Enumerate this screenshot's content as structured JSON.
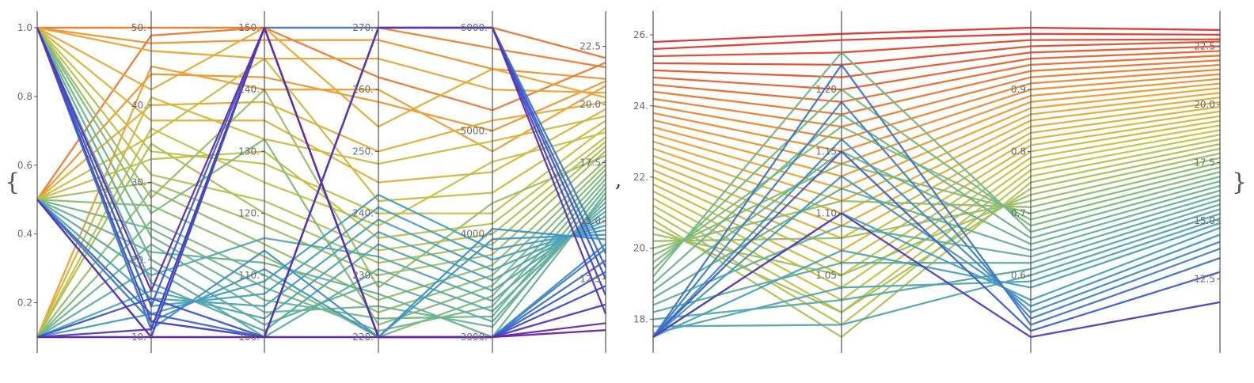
{
  "wrapper": {
    "open": "{",
    "separator": ",",
    "close": "}"
  },
  "chart_data": [
    {
      "type": "parallel_coordinates",
      "title": "",
      "axes": [
        {
          "name": "",
          "min": 0.1,
          "max": 1.0,
          "ticks": [
            {
              "v": 1.0,
              "t": "1.0"
            },
            {
              "v": 0.8,
              "t": "0.8"
            },
            {
              "v": 0.6,
              "t": "0.6"
            },
            {
              "v": 0.4,
              "t": "0.4"
            },
            {
              "v": 0.2,
              "t": "0.2"
            }
          ]
        },
        {
          "name": "",
          "min": 10,
          "max": 50,
          "ticks": [
            {
              "v": 50,
              "t": "50."
            },
            {
              "v": 40,
              "t": "40."
            },
            {
              "v": 30,
              "t": "30."
            },
            {
              "v": 20,
              "t": "20."
            },
            {
              "v": 10,
              "t": "10."
            }
          ]
        },
        {
          "name": "",
          "min": 100,
          "max": 150,
          "ticks": [
            {
              "v": 150,
              "t": "150."
            },
            {
              "v": 140,
              "t": "140."
            },
            {
              "v": 130,
              "t": "130."
            },
            {
              "v": 120,
              "t": "120."
            },
            {
              "v": 110,
              "t": "110."
            },
            {
              "v": 100,
              "t": "100."
            }
          ]
        },
        {
          "name": "",
          "min": 220,
          "max": 270,
          "ticks": [
            {
              "v": 270,
              "t": "270."
            },
            {
              "v": 260,
              "t": "260."
            },
            {
              "v": 250,
              "t": "250."
            },
            {
              "v": 240,
              "t": "240."
            },
            {
              "v": 230,
              "t": "230."
            },
            {
              "v": 220,
              "t": "220."
            }
          ]
        },
        {
          "name": "",
          "min": 3000,
          "max": 6000,
          "ticks": [
            {
              "v": 6000,
              "t": "6000."
            },
            {
              "v": 5000,
              "t": "5000."
            },
            {
              "v": 4000,
              "t": "4000."
            },
            {
              "v": 3000,
              "t": "3000."
            }
          ]
        },
        {
          "name": "",
          "min": 10,
          "max": 23.3,
          "ticks": [
            {
              "v": 22.5,
              "t": "22.5"
            },
            {
              "v": 20,
              "t": "20.0"
            },
            {
              "v": 17.5,
              "t": "17.5"
            },
            {
              "v": 15,
              "t": "15.0"
            },
            {
              "v": 12.5,
              "t": "12.5"
            }
          ]
        }
      ],
      "series": [
        [
          1.0,
          50,
          150,
          270,
          6000,
          22.0
        ],
        [
          1.0,
          50,
          150,
          270,
          5800,
          21.6
        ],
        [
          1.0,
          48,
          148,
          268,
          5600,
          21.1
        ],
        [
          0.5,
          49,
          150,
          262,
          5200,
          21.8
        ],
        [
          1.0,
          47,
          145,
          265,
          5400,
          20.5
        ],
        [
          0.5,
          44,
          142,
          258,
          5000,
          21.0
        ],
        [
          1.0,
          42,
          150,
          254,
          5600,
          20.3
        ],
        [
          0.1,
          45,
          140,
          260,
          4800,
          20.8
        ],
        [
          0.5,
          40,
          138,
          250,
          5100,
          20.1
        ],
        [
          1.0,
          38,
          135,
          245,
          4600,
          19.8
        ],
        [
          0.1,
          41,
          132,
          248,
          4900,
          19.5
        ],
        [
          0.5,
          36,
          145,
          242,
          4400,
          19.3
        ],
        [
          1.0,
          34,
          128,
          240,
          4200,
          19.0
        ],
        [
          0.1,
          37,
          125,
          238,
          4700,
          18.8
        ],
        [
          0.5,
          33,
          130,
          236,
          4100,
          18.6
        ],
        [
          1.0,
          31,
          122,
          234,
          4000,
          18.4
        ],
        [
          0.1,
          35,
          120,
          232,
          3900,
          18.2
        ],
        [
          0.5,
          30,
          118,
          230,
          3800,
          18.0
        ],
        [
          1.0,
          28,
          140,
          228,
          4300,
          17.8
        ],
        [
          0.1,
          29,
          115,
          226,
          3700,
          17.6
        ],
        [
          0.5,
          27,
          113,
          224,
          3600,
          17.4
        ],
        [
          1.0,
          26,
          132,
          222,
          3500,
          17.2
        ],
        [
          0.1,
          25,
          110,
          220,
          3400,
          17.0
        ],
        [
          0.5,
          24,
          108,
          221,
          3300,
          16.8
        ],
        [
          1.0,
          23,
          106,
          223,
          3200,
          16.6
        ],
        [
          0.1,
          22,
          104,
          225,
          3100,
          16.4
        ],
        [
          0.5,
          21,
          112,
          227,
          3000,
          16.2
        ],
        [
          1.0,
          20,
          102,
          229,
          3150,
          16.0
        ],
        [
          0.1,
          19,
          100,
          231,
          3250,
          15.8
        ],
        [
          0.5,
          18,
          116,
          233,
          3350,
          15.6
        ],
        [
          1.0,
          17,
          101,
          235,
          3450,
          15.4
        ],
        [
          0.1,
          16,
          103,
          237,
          3550,
          15.2
        ],
        [
          0.5,
          15,
          105,
          239,
          3650,
          15.0
        ],
        [
          1.0,
          14,
          107,
          241,
          3750,
          14.8
        ],
        [
          0.1,
          13,
          109,
          243,
          3850,
          14.6
        ],
        [
          0.5,
          12,
          111,
          220,
          3950,
          14.4
        ],
        [
          1.0,
          11,
          114,
          220,
          4050,
          14.2
        ],
        [
          0.1,
          10,
          100,
          220,
          3000,
          14.0
        ],
        [
          0.5,
          12,
          100,
          220,
          3000,
          13.8
        ],
        [
          1.0,
          11,
          150,
          270,
          6000,
          13.6
        ],
        [
          0.1,
          10,
          150,
          220,
          3000,
          13.3
        ],
        [
          0.5,
          13,
          100,
          270,
          6000,
          13.0
        ],
        [
          1.0,
          14,
          150,
          220,
          3000,
          12.8
        ],
        [
          0.1,
          15,
          100,
          270,
          6000,
          12.5
        ],
        [
          0.5,
          10,
          150,
          220,
          3000,
          12.2
        ],
        [
          1.0,
          12,
          100,
          270,
          6000,
          11.8
        ],
        [
          0.1,
          11,
          150,
          220,
          3000,
          11.4
        ],
        [
          0.5,
          10,
          100,
          270,
          6000,
          11.0
        ],
        [
          1.0,
          16,
          150,
          220,
          3000,
          10.6
        ],
        [
          0.1,
          10,
          100,
          220,
          3000,
          10.3
        ]
      ]
    },
    {
      "type": "parallel_coordinates",
      "title": "",
      "axes": [
        {
          "name": "",
          "min": 17.5,
          "max": 26.2,
          "ticks": [
            {
              "v": 26,
              "t": "26."
            },
            {
              "v": 24,
              "t": "24."
            },
            {
              "v": 22,
              "t": "22."
            },
            {
              "v": 20,
              "t": "20."
            },
            {
              "v": 18,
              "t": "18."
            }
          ]
        },
        {
          "name": "",
          "min": 1.0,
          "max": 1.25,
          "ticks": [
            {
              "v": 1.2,
              "t": "1.20"
            },
            {
              "v": 1.15,
              "t": "1.15"
            },
            {
              "v": 1.1,
              "t": "1.10"
            },
            {
              "v": 1.05,
              "t": "1.05"
            }
          ]
        },
        {
          "name": "",
          "min": 0.5,
          "max": 1.0,
          "ticks": [
            {
              "v": 0.9,
              "t": "0.9"
            },
            {
              "v": 0.8,
              "t": "0.8"
            },
            {
              "v": 0.7,
              "t": "0.7"
            },
            {
              "v": 0.6,
              "t": "0.6"
            }
          ]
        },
        {
          "name": "",
          "min": 10,
          "max": 23.3,
          "ticks": [
            {
              "v": 22.5,
              "t": "22.5"
            },
            {
              "v": 20,
              "t": "20.0"
            },
            {
              "v": 17.5,
              "t": "17.5"
            },
            {
              "v": 15,
              "t": "15.0"
            },
            {
              "v": 12.5,
              "t": "12.5"
            }
          ]
        }
      ],
      "series": [
        [
          25.8,
          1.245,
          1.0,
          23.2
        ],
        [
          25.6,
          1.24,
          0.99,
          23.0
        ],
        [
          25.4,
          1.23,
          0.98,
          22.8
        ],
        [
          25.2,
          1.22,
          0.97,
          22.7
        ],
        [
          25.0,
          1.21,
          0.96,
          22.5
        ],
        [
          24.8,
          1.2,
          0.95,
          22.3
        ],
        [
          24.6,
          1.19,
          0.94,
          22.1
        ],
        [
          24.4,
          1.18,
          0.93,
          21.9
        ],
        [
          24.2,
          1.17,
          0.92,
          21.7
        ],
        [
          24.0,
          1.16,
          0.91,
          21.5
        ],
        [
          23.8,
          1.15,
          0.9,
          21.3
        ],
        [
          23.6,
          1.14,
          0.89,
          21.1
        ],
        [
          23.4,
          1.13,
          0.88,
          20.9
        ],
        [
          23.2,
          1.12,
          0.87,
          20.7
        ],
        [
          23.0,
          1.11,
          0.86,
          20.5
        ],
        [
          22.8,
          1.1,
          0.85,
          20.3
        ],
        [
          22.6,
          1.09,
          0.84,
          20.1
        ],
        [
          22.4,
          1.08,
          0.83,
          19.9
        ],
        [
          22.2,
          1.07,
          0.82,
          19.7
        ],
        [
          22.0,
          1.06,
          0.81,
          19.5
        ],
        [
          21.8,
          1.05,
          0.8,
          19.3
        ],
        [
          21.6,
          1.04,
          0.79,
          19.1
        ],
        [
          21.4,
          1.03,
          0.78,
          18.9
        ],
        [
          21.2,
          1.02,
          0.77,
          18.7
        ],
        [
          21.0,
          1.01,
          0.76,
          18.5
        ],
        [
          20.8,
          1.0,
          0.75,
          18.3
        ],
        [
          20.6,
          1.02,
          0.74,
          18.1
        ],
        [
          20.4,
          1.05,
          0.73,
          17.9
        ],
        [
          20.2,
          1.08,
          0.72,
          17.7
        ],
        [
          20.0,
          1.11,
          0.71,
          17.5
        ],
        [
          19.8,
          1.14,
          0.7,
          17.3
        ],
        [
          19.6,
          1.17,
          0.69,
          17.1
        ],
        [
          19.4,
          1.2,
          0.68,
          16.9
        ],
        [
          19.2,
          1.23,
          0.67,
          16.7
        ],
        [
          19.0,
          1.18,
          0.66,
          16.5
        ],
        [
          18.8,
          1.15,
          0.65,
          16.3
        ],
        [
          18.6,
          1.12,
          0.64,
          16.1
        ],
        [
          18.4,
          1.09,
          0.63,
          15.9
        ],
        [
          18.2,
          1.06,
          0.62,
          15.7
        ],
        [
          18.0,
          1.03,
          0.61,
          15.5
        ],
        [
          17.8,
          1.01,
          0.6,
          15.3
        ],
        [
          17.6,
          1.04,
          0.59,
          15.1
        ],
        [
          17.5,
          1.07,
          0.58,
          14.9
        ],
        [
          17.5,
          1.1,
          0.56,
          14.7
        ],
        [
          17.5,
          1.13,
          0.55,
          14.4
        ],
        [
          17.5,
          1.16,
          0.54,
          14.1
        ],
        [
          17.5,
          1.19,
          0.53,
          13.8
        ],
        [
          17.5,
          1.22,
          0.52,
          13.4
        ],
        [
          17.5,
          1.15,
          0.51,
          12.8
        ],
        [
          17.5,
          1.1,
          0.5,
          11.5
        ]
      ]
    }
  ]
}
